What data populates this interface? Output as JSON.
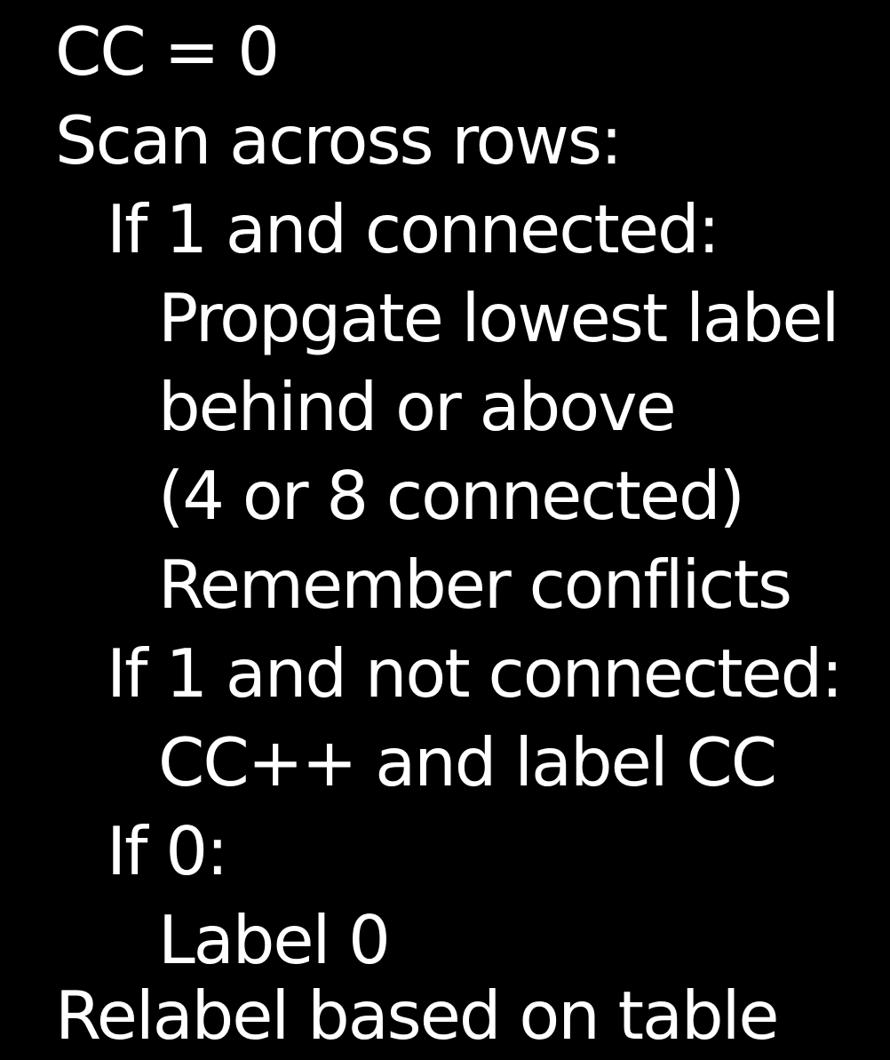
{
  "lines": [
    {
      "text": "CC = 0",
      "indent": 0
    },
    {
      "text": "Scan across rows:",
      "indent": 0
    },
    {
      "text": "If 1 and connected:",
      "indent": 1
    },
    {
      "text": "Propgate lowest label",
      "indent": 2
    },
    {
      "text": "behind or above",
      "indent": 2
    },
    {
      "text": "(4 or 8 connected)",
      "indent": 2
    },
    {
      "text": "Remember conflicts",
      "indent": 2
    },
    {
      "text": "If 1 and not connected:",
      "indent": 1
    },
    {
      "text": "CC++ and label CC",
      "indent": 2
    },
    {
      "text": "If 0:",
      "indent": 1
    },
    {
      "text": "Label 0",
      "indent": 2
    },
    {
      "text": "Relabel based on table",
      "indent": 0
    }
  ]
}
